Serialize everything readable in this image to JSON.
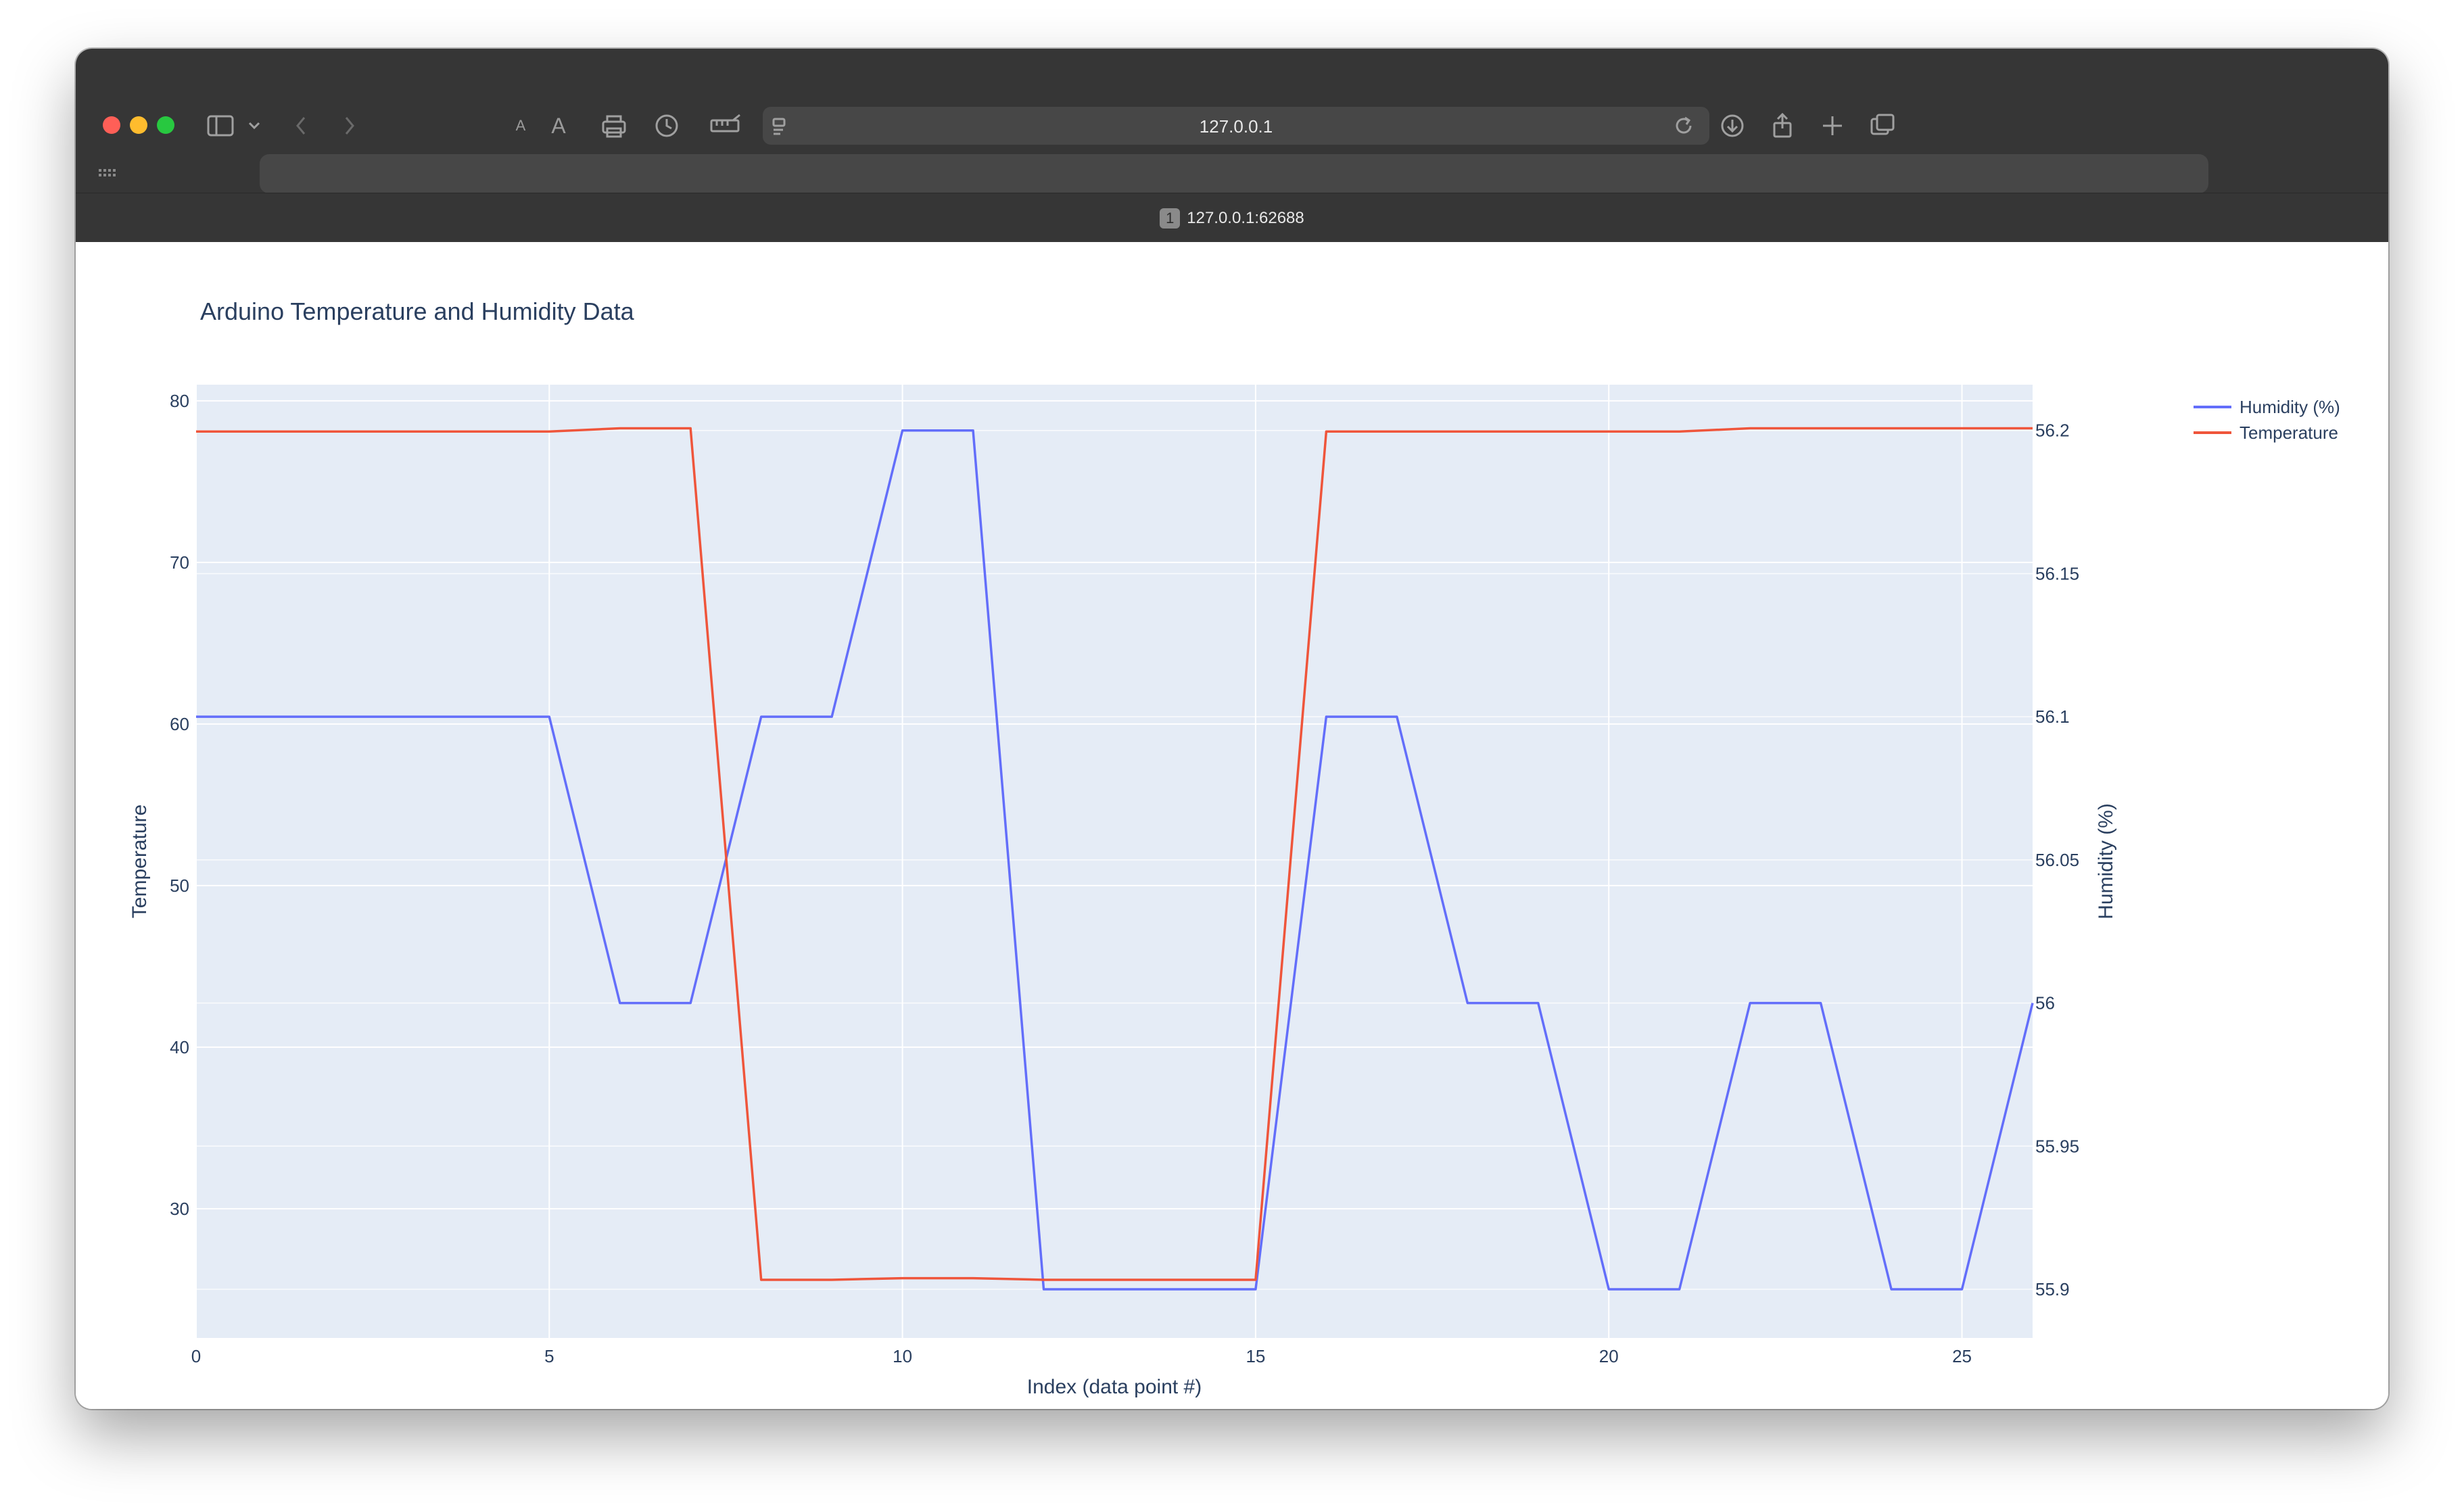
{
  "browser": {
    "address": "127.0.0.1",
    "tab_number": "1",
    "tab_url": "127.0.0.1:62688",
    "toolbar_icons": [
      "sidebar-icon",
      "chevron-down-icon",
      "back-icon",
      "forward-icon",
      "text-smaller-icon",
      "text-larger-icon",
      "print-icon",
      "history-icon",
      "ruler-icon",
      "reader-icon",
      "reload-icon",
      "download-icon",
      "share-icon",
      "new-tab-icon",
      "tabs-overview-icon",
      "grid-icon"
    ]
  },
  "chart_data": {
    "type": "line",
    "title": "Arduino Temperature and Humidity Data",
    "xlabel": "Index (data point #)",
    "ylabel": "Temperature",
    "y2label": "Humidity (%)",
    "x": [
      0,
      1,
      2,
      3,
      4,
      5,
      6,
      7,
      8,
      9,
      10,
      11,
      12,
      13,
      14,
      15,
      16,
      17,
      18,
      19,
      20,
      21,
      22,
      23,
      24,
      25,
      26
    ],
    "xlim": [
      0,
      26
    ],
    "ylim": [
      22,
      81
    ],
    "y2lim": [
      55.883,
      56.216
    ],
    "xticks": [
      0,
      5,
      10,
      15,
      20,
      25
    ],
    "yticks": [
      30,
      40,
      50,
      60,
      70,
      80
    ],
    "y2ticks": [
      55.9,
      55.95,
      56,
      56.05,
      56.1,
      56.15,
      56.2
    ],
    "y2ticklabels": [
      "55.9",
      "55.95",
      "56",
      "56.05",
      "56.1",
      "56.15",
      "56.2"
    ],
    "grid": true,
    "legend_position": "top-right",
    "series": [
      {
        "name": "Humidity (%)",
        "axis": "y2",
        "color": "#636efa",
        "values": [
          56.1,
          56.1,
          56.1,
          56.1,
          56.1,
          56.1,
          56.0,
          56.0,
          56.1,
          56.1,
          56.2,
          56.2,
          55.9,
          55.9,
          55.9,
          55.9,
          56.1,
          56.1,
          56.0,
          56.0,
          55.9,
          55.9,
          56.0,
          56.0,
          55.9,
          55.9,
          56.0
        ]
      },
      {
        "name": "Temperature",
        "axis": "y",
        "color": "#ef553b",
        "values": [
          78.1,
          78.1,
          78.1,
          78.1,
          78.1,
          78.1,
          78.3,
          78.3,
          25.6,
          25.6,
          25.7,
          25.7,
          25.6,
          25.6,
          25.6,
          25.6,
          78.1,
          78.1,
          78.1,
          78.1,
          78.1,
          78.1,
          78.3,
          78.3,
          78.3,
          78.3,
          78.3
        ]
      }
    ]
  }
}
